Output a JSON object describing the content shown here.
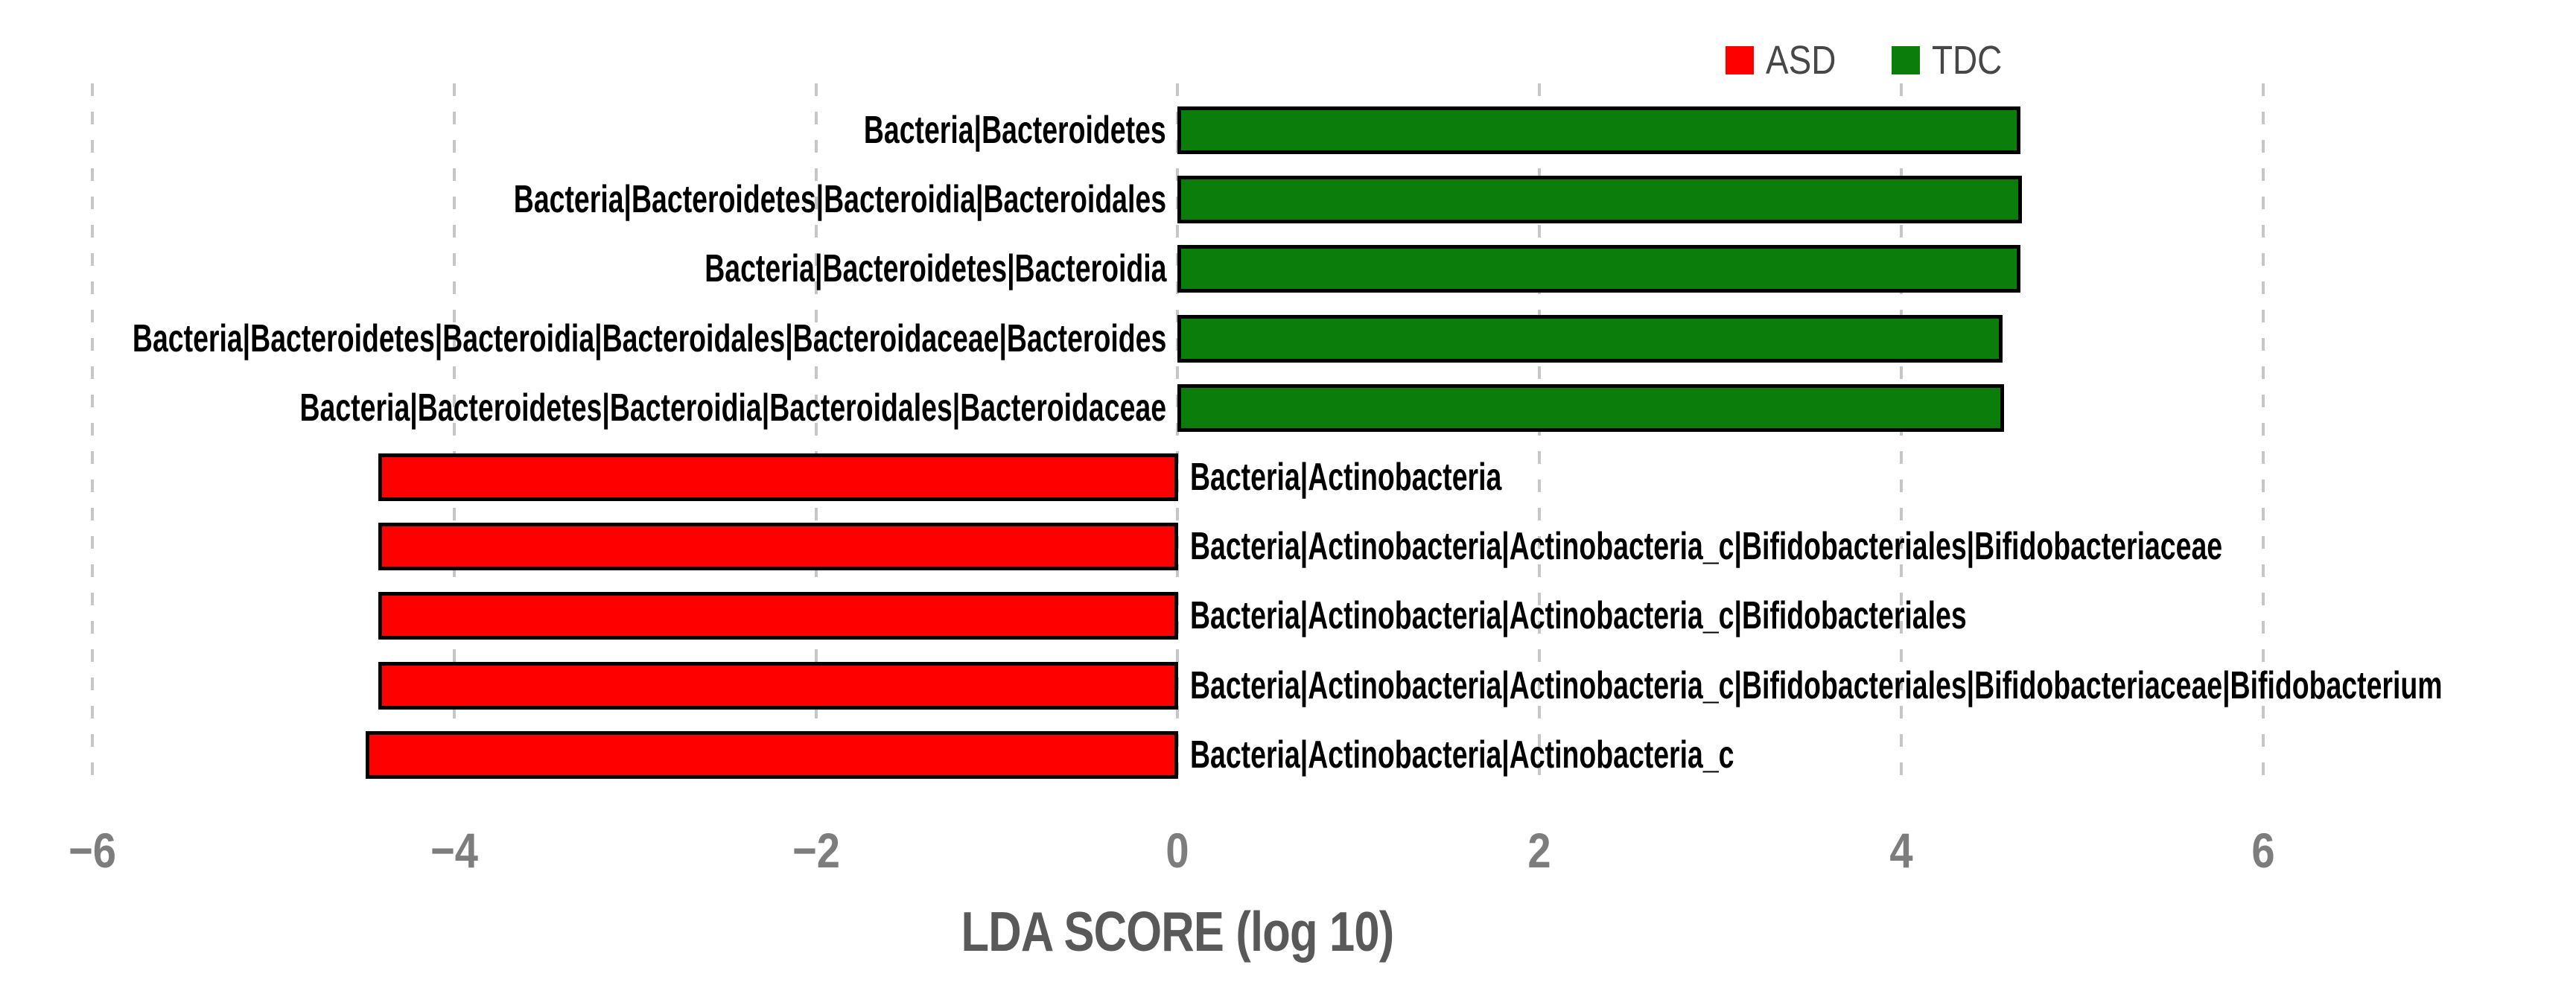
{
  "legend": {
    "items": [
      {
        "label": "ASD",
        "color": "#ff0000"
      },
      {
        "label": "TDC",
        "color": "#0b7d0b"
      }
    ]
  },
  "chart_data": {
    "type": "bar",
    "orientation": "horizontal",
    "title": "",
    "xlabel": "LDA SCORE (log 10)",
    "ylabel": "",
    "xlim": [
      -6.51,
      7.73
    ],
    "x_ticks": [
      -6,
      -4,
      -2,
      0,
      2,
      4,
      6
    ],
    "x_tick_labels": [
      "−6",
      "−4",
      "−2",
      "0",
      "2",
      "4",
      "6"
    ],
    "grid": "dashed-vertical",
    "legend_position": "top-right",
    "groups": {
      "ASD": {
        "color": "#ff0000"
      },
      "TDC": {
        "color": "#0b7d0b"
      }
    },
    "bars": [
      {
        "label": "Bacteria|Bacteroidetes",
        "value": 4.66,
        "group": "TDC"
      },
      {
        "label": "Bacteria|Bacteroidetes|Bacteroidia|Bacteroidales",
        "value": 4.67,
        "group": "TDC"
      },
      {
        "label": "Bacteria|Bacteroidetes|Bacteroidia",
        "value": 4.66,
        "group": "TDC"
      },
      {
        "label": "Bacteria|Bacteroidetes|Bacteroidia|Bacteroidales|Bacteroidaceae|Bacteroides",
        "value": 4.56,
        "group": "TDC"
      },
      {
        "label": "Bacteria|Bacteroidetes|Bacteroidia|Bacteroidales|Bacteroidaceae",
        "value": 4.57,
        "group": "TDC"
      },
      {
        "label": "Bacteria|Actinobacteria",
        "value": -4.42,
        "group": "ASD"
      },
      {
        "label": "Bacteria|Actinobacteria|Actinobacteria_c|Bifidobacteriales|Bifidobacteriaceae",
        "value": -4.42,
        "group": "ASD"
      },
      {
        "label": "Bacteria|Actinobacteria|Actinobacteria_c|Bifidobacteriales",
        "value": -4.42,
        "group": "ASD"
      },
      {
        "label": "Bacteria|Actinobacteria|Actinobacteria_c|Bifidobacteriales|Bifidobacteriaceae|Bifidobacterium",
        "value": -4.42,
        "group": "ASD"
      },
      {
        "label": "Bacteria|Actinobacteria|Actinobacteria_c",
        "value": -4.49,
        "group": "ASD"
      }
    ]
  }
}
